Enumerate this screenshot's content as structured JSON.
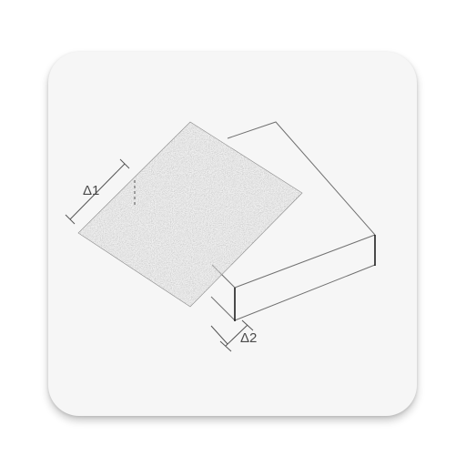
{
  "diagram": {
    "label_delta1": "Δ1",
    "label_delta2": "Δ2"
  },
  "colors": {
    "background": "#ffffff",
    "card": "#f6f6f6",
    "line": "#707070",
    "sheet": "#8c8c8c"
  }
}
